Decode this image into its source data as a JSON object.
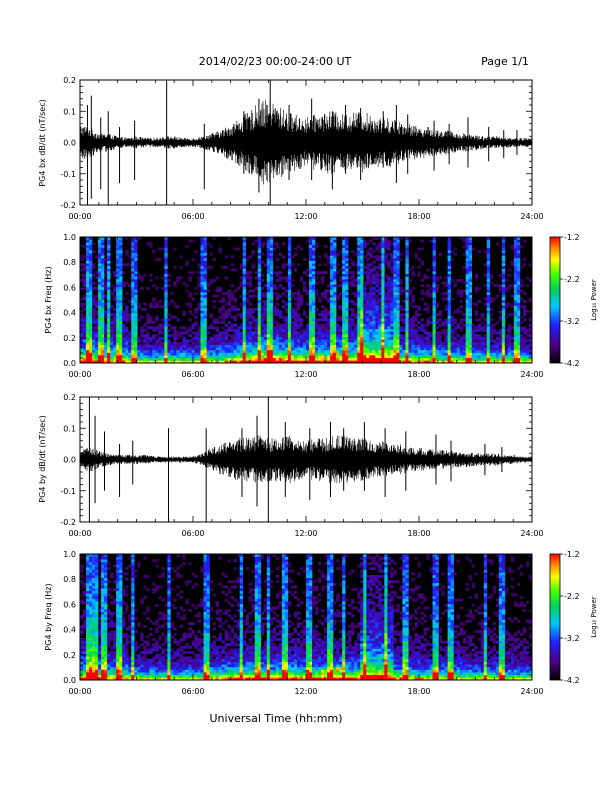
{
  "header": {
    "title": "2014/02/23  00:00-24:00 UT",
    "page": "Page 1/1"
  },
  "xaxis_label": "Universal Time (hh:mm)",
  "colors": {
    "waveform": "#000000",
    "spectrogram_bg": "#000000"
  },
  "chart_data": [
    {
      "type": "line",
      "ylabel": "PG4 bx dB/dt (nT/sec)",
      "xlim": [
        0,
        24
      ],
      "ylim": [
        -0.2,
        0.2
      ],
      "xticks": [
        "00:00",
        "06:00",
        "12:00",
        "18:00",
        "24:00"
      ],
      "yticks": [
        "-0.2",
        "-0.1",
        "0.0",
        "0.1",
        "0.2"
      ],
      "x_units": "hours UT",
      "envelope": {
        "x": [
          0,
          0.5,
          1,
          1.5,
          2,
          2.5,
          3,
          3.5,
          4,
          4.5,
          5,
          5.5,
          6,
          6.5,
          7,
          7.5,
          8,
          8.5,
          9,
          9.5,
          10,
          10.5,
          11,
          11.5,
          12,
          12.5,
          13,
          13.5,
          14,
          14.5,
          15,
          15.5,
          16,
          16.5,
          17,
          17.5,
          18,
          18.5,
          19,
          19.5,
          20,
          20.5,
          21,
          21.5,
          22,
          22.5,
          23,
          23.5,
          24
        ],
        "amplitude": [
          0.06,
          0.05,
          0.03,
          0.03,
          0.02,
          0.015,
          0.02,
          0.015,
          0.015,
          0.02,
          0.02,
          0.015,
          0.015,
          0.02,
          0.03,
          0.04,
          0.06,
          0.08,
          0.1,
          0.13,
          0.14,
          0.12,
          0.1,
          0.09,
          0.08,
          0.09,
          0.1,
          0.1,
          0.09,
          0.1,
          0.1,
          0.09,
          0.08,
          0.08,
          0.07,
          0.06,
          0.05,
          0.05,
          0.04,
          0.04,
          0.03,
          0.03,
          0.025,
          0.02,
          0.02,
          0.02,
          0.015,
          0.015,
          0.015
        ]
      },
      "spikes": {
        "x": [
          0.4,
          0.6,
          1.1,
          1.5,
          2.1,
          2.9,
          4.6,
          6.6,
          8.7,
          9.5,
          10.1,
          11.1,
          12.3,
          13.4,
          14.1,
          14.9,
          16.1,
          16.8,
          17.4,
          18.8,
          19.6,
          20.6,
          21.7,
          22.5,
          23.2
        ],
        "min": [
          -0.2,
          -0.18,
          -0.15,
          -0.2,
          -0.13,
          -0.12,
          -0.2,
          -0.15,
          -0.1,
          -0.16,
          -0.2,
          -0.12,
          -0.12,
          -0.15,
          -0.1,
          -0.12,
          -0.08,
          -0.13,
          -0.1,
          -0.09,
          -0.07,
          -0.08,
          -0.06,
          -0.05,
          -0.04
        ],
        "max": [
          0.12,
          0.15,
          0.08,
          0.1,
          0.05,
          0.07,
          0.2,
          0.06,
          0.1,
          0.14,
          0.2,
          0.12,
          0.14,
          0.1,
          0.12,
          0.11,
          0.1,
          0.12,
          0.09,
          0.07,
          0.06,
          0.08,
          0.05,
          0.04,
          0.04
        ]
      }
    },
    {
      "type": "heatmap",
      "ylabel": "PG4 bx Freq (Hz)",
      "xlim": [
        0,
        24
      ],
      "ylim": [
        0,
        1.0
      ],
      "xticks": [
        "00:00",
        "06:00",
        "12:00",
        "18:00",
        "24:00"
      ],
      "yticks": [
        "0.0",
        "0.2",
        "0.4",
        "0.6",
        "0.8",
        "1.0"
      ],
      "colorbar": {
        "label": "Log₁₀ Power",
        "min": -4.2,
        "max": -1.2,
        "ticks": [
          "-1.2",
          "-2.2",
          "-3.2",
          "-4.2"
        ]
      },
      "hot_spots": [
        {
          "t": 12.8,
          "f": 0.05,
          "level": 0.92
        },
        {
          "t": 13.6,
          "f": 0.07,
          "level": 0.95
        }
      ]
    },
    {
      "type": "line",
      "ylabel": "PG4 by dB/dt (nT/sec)",
      "xlim": [
        0,
        24
      ],
      "ylim": [
        -0.2,
        0.2
      ],
      "xticks": [
        "00:00",
        "06:00",
        "12:00",
        "18:00",
        "24:00"
      ],
      "yticks": [
        "-0.2",
        "-0.1",
        "0.0",
        "0.1",
        "0.2"
      ],
      "x_units": "hours UT",
      "envelope": {
        "x": [
          0,
          0.5,
          1,
          1.5,
          2,
          2.5,
          3,
          3.5,
          4,
          4.5,
          5,
          5.5,
          6,
          6.5,
          7,
          7.5,
          8,
          8.5,
          9,
          9.5,
          10,
          10.5,
          11,
          11.5,
          12,
          12.5,
          13,
          13.5,
          14,
          14.5,
          15,
          15.5,
          16,
          16.5,
          17,
          17.5,
          18,
          18.5,
          19,
          19.5,
          20,
          20.5,
          21,
          21.5,
          22,
          22.5,
          23,
          23.5,
          24
        ],
        "amplitude": [
          0.03,
          0.04,
          0.03,
          0.02,
          0.015,
          0.015,
          0.015,
          0.015,
          0.01,
          0.01,
          0.01,
          0.01,
          0.01,
          0.02,
          0.04,
          0.05,
          0.06,
          0.07,
          0.07,
          0.08,
          0.07,
          0.07,
          0.08,
          0.07,
          0.06,
          0.07,
          0.07,
          0.08,
          0.08,
          0.07,
          0.07,
          0.06,
          0.06,
          0.05,
          0.05,
          0.04,
          0.04,
          0.035,
          0.03,
          0.03,
          0.025,
          0.025,
          0.02,
          0.02,
          0.02,
          0.015,
          0.015,
          0.01,
          0.01
        ]
      },
      "spikes": {
        "x": [
          0.5,
          0.8,
          1.3,
          2.1,
          2.8,
          4.7,
          6.7,
          8.6,
          9.4,
          10.0,
          10.9,
          12.2,
          13.3,
          14.0,
          15.1,
          16.2,
          17.3,
          18.9,
          19.7,
          21.5,
          22.4
        ],
        "min": [
          -0.2,
          -0.14,
          -0.1,
          -0.12,
          -0.08,
          -0.2,
          -0.2,
          -0.12,
          -0.15,
          -0.2,
          -0.12,
          -0.13,
          -0.12,
          -0.1,
          -0.1,
          -0.12,
          -0.1,
          -0.08,
          -0.07,
          -0.05,
          -0.04
        ],
        "max": [
          0.2,
          0.14,
          0.09,
          0.05,
          0.06,
          0.1,
          0.1,
          0.1,
          0.14,
          0.2,
          0.12,
          0.1,
          0.12,
          0.1,
          0.12,
          0.1,
          0.09,
          0.08,
          0.06,
          0.05,
          0.04
        ]
      }
    },
    {
      "type": "heatmap",
      "ylabel": "PG4 by Freq (Hz)",
      "xlim": [
        0,
        24
      ],
      "ylim": [
        0,
        1.0
      ],
      "xticks": [
        "00:00",
        "06:00",
        "12:00",
        "18:00",
        "24:00"
      ],
      "yticks": [
        "0.0",
        "0.2",
        "0.4",
        "0.6",
        "0.8",
        "1.0"
      ],
      "colorbar": {
        "label": "Log₁₀ Power",
        "min": -4.2,
        "max": -1.2,
        "ticks": [
          "-1.2",
          "-2.2",
          "-3.2",
          "-4.2"
        ]
      },
      "hot_spots": [
        {
          "t": 12.9,
          "f": 0.06,
          "level": 0.92
        },
        {
          "t": 13.7,
          "f": 0.08,
          "level": 0.96
        }
      ]
    }
  ]
}
